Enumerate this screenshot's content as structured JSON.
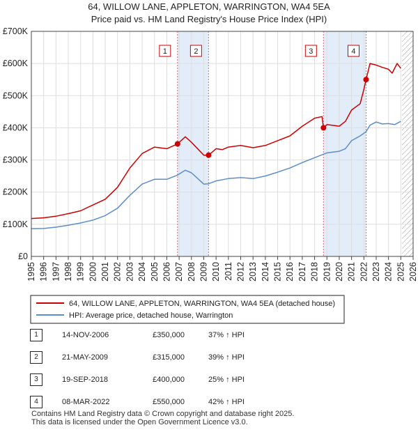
{
  "chart_data": {
    "type": "line",
    "title": "64, WILLOW LANE, APPLETON, WARRINGTON, WA4 5EA",
    "subtitle": "Price paid vs. HM Land Registry's House Price Index (HPI)",
    "x_ticks": [
      "1995",
      "1996",
      "1997",
      "1998",
      "1999",
      "2000",
      "2001",
      "2002",
      "2003",
      "2004",
      "2005",
      "2006",
      "2007",
      "2008",
      "2009",
      "2010",
      "2011",
      "2012",
      "2013",
      "2014",
      "2015",
      "2016",
      "2017",
      "2018",
      "2019",
      "2020",
      "2021",
      "2022",
      "2023",
      "2024",
      "2025",
      "2026"
    ],
    "y_ticks": [
      "£0",
      "£100K",
      "£200K",
      "£300K",
      "£400K",
      "£500K",
      "£600K",
      "£700K"
    ],
    "xlim": [
      1995,
      2026
    ],
    "ylim": [
      0,
      700000
    ],
    "series": [
      {
        "name": "64, WILLOW LANE, APPLETON, WARRINGTON, WA4 5EA (detached house)",
        "color": "#cc0000",
        "points": [
          [
            1995,
            118000
          ],
          [
            1996,
            120000
          ],
          [
            1997,
            125000
          ],
          [
            1998,
            133000
          ],
          [
            1999,
            142000
          ],
          [
            2000,
            160000
          ],
          [
            2001,
            178000
          ],
          [
            2002,
            215000
          ],
          [
            2003,
            275000
          ],
          [
            2004,
            320000
          ],
          [
            2005,
            340000
          ],
          [
            2006,
            335000
          ],
          [
            2006.87,
            350000
          ],
          [
            2007.5,
            372000
          ],
          [
            2008,
            355000
          ],
          [
            2009,
            315000
          ],
          [
            2009.39,
            315000
          ],
          [
            2010,
            335000
          ],
          [
            2010.5,
            332000
          ],
          [
            2011,
            340000
          ],
          [
            2012,
            345000
          ],
          [
            2013,
            338000
          ],
          [
            2014,
            345000
          ],
          [
            2015,
            360000
          ],
          [
            2016,
            375000
          ],
          [
            2017,
            405000
          ],
          [
            2018,
            430000
          ],
          [
            2018.6,
            435000
          ],
          [
            2018.72,
            400000
          ],
          [
            2019,
            410000
          ],
          [
            2020,
            405000
          ],
          [
            2020.5,
            420000
          ],
          [
            2021,
            455000
          ],
          [
            2021.7,
            475000
          ],
          [
            2022,
            520000
          ],
          [
            2022.18,
            550000
          ],
          [
            2022.5,
            600000
          ],
          [
            2023,
            595000
          ],
          [
            2023.5,
            588000
          ],
          [
            2024,
            582000
          ],
          [
            2024.3,
            570000
          ],
          [
            2024.7,
            600000
          ],
          [
            2025,
            585000
          ]
        ]
      },
      {
        "name": "HPI: Average price, detached house, Warrington",
        "color": "#5b8ec9",
        "points": [
          [
            1995,
            86000
          ],
          [
            1996,
            87000
          ],
          [
            1997,
            91000
          ],
          [
            1998,
            97000
          ],
          [
            1999,
            104000
          ],
          [
            2000,
            113000
          ],
          [
            2001,
            127000
          ],
          [
            2002,
            150000
          ],
          [
            2003,
            190000
          ],
          [
            2004,
            225000
          ],
          [
            2005,
            240000
          ],
          [
            2006,
            240000
          ],
          [
            2006.87,
            253000
          ],
          [
            2007.5,
            268000
          ],
          [
            2008,
            260000
          ],
          [
            2009,
            225000
          ],
          [
            2009.39,
            226000
          ],
          [
            2010,
            235000
          ],
          [
            2011,
            242000
          ],
          [
            2012,
            245000
          ],
          [
            2013,
            242000
          ],
          [
            2014,
            250000
          ],
          [
            2015,
            262000
          ],
          [
            2016,
            275000
          ],
          [
            2017,
            292000
          ],
          [
            2018,
            307000
          ],
          [
            2018.72,
            318000
          ],
          [
            2019,
            322000
          ],
          [
            2020,
            327000
          ],
          [
            2020.5,
            335000
          ],
          [
            2021,
            360000
          ],
          [
            2021.7,
            375000
          ],
          [
            2022.18,
            388000
          ],
          [
            2022.5,
            408000
          ],
          [
            2023,
            418000
          ],
          [
            2023.5,
            412000
          ],
          [
            2024,
            413000
          ],
          [
            2024.5,
            410000
          ],
          [
            2025,
            420000
          ]
        ]
      }
    ],
    "transactions": [
      {
        "num": "1",
        "year": 2006.87,
        "value": 350000,
        "date": "14-NOV-2006",
        "price": "£350,000",
        "hpi": "37% ↑ HPI"
      },
      {
        "num": "2",
        "year": 2009.39,
        "value": 315000,
        "date": "21-MAY-2009",
        "price": "£315,000",
        "hpi": "39% ↑ HPI"
      },
      {
        "num": "3",
        "year": 2018.72,
        "value": 400000,
        "date": "19-SEP-2018",
        "price": "£400,000",
        "hpi": "25% ↑ HPI"
      },
      {
        "num": "4",
        "year": 2022.18,
        "value": 550000,
        "date": "08-MAR-2022",
        "price": "£550,000",
        "hpi": "42% ↑ HPI"
      }
    ],
    "shaded_periods": [
      [
        2006.87,
        2009.39
      ],
      [
        2018.72,
        2022.18
      ]
    ],
    "forecast_start": 2025.1,
    "grid": true,
    "legend_position": "below-chart"
  },
  "footer": {
    "line1": "Contains HM Land Registry data © Crown copyright and database right 2025.",
    "line2": "This data is licensed under the Open Government Licence v3.0."
  },
  "colors": {
    "price_line": "#cc0000",
    "hpi_line": "#5b8ec9",
    "shade": "#dce8f8",
    "marker_dash": "#dd6677"
  }
}
